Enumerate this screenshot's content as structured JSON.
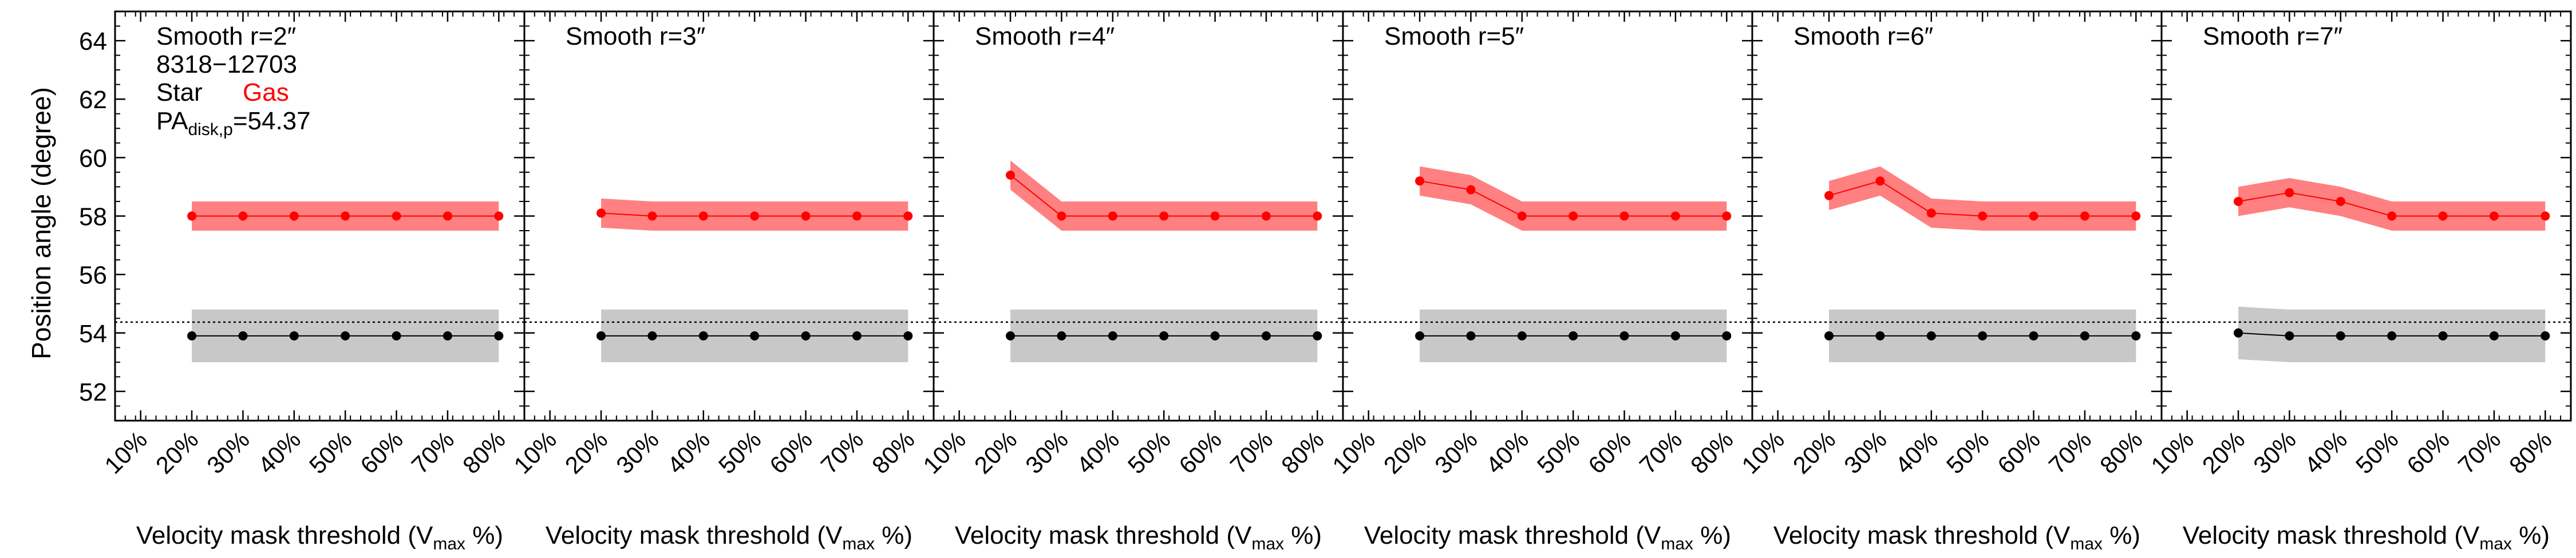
{
  "figure": {
    "ylabel": "Position angle (degree)",
    "xlabel_main": "Velocity mask threshold (V",
    "xlabel_sub": "max",
    "xlabel_tail": " %)",
    "info": {
      "galaxy_id": "8318−12703",
      "legend_star": "Star",
      "legend_gas": "Gas",
      "pa_main": "PA",
      "pa_sub": "disk,p",
      "pa_value": "=54.37"
    },
    "colors": {
      "star": "#000000",
      "gas": "#ff0000",
      "gas_band": "#ff8080",
      "star_band": "#c8c8c8",
      "reference_line": "#000000"
    }
  },
  "chart_data": [
    {
      "type": "line",
      "title": "Smooth r=2″",
      "x": [
        20,
        30,
        40,
        50,
        60,
        70,
        80
      ],
      "xticks": [
        "10%",
        "20%",
        "30%",
        "40%",
        "50%",
        "60%",
        "70%",
        "80%"
      ],
      "xlim": [
        5,
        85
      ],
      "ylim": [
        51,
        65
      ],
      "yticks": [
        52,
        54,
        56,
        58,
        60,
        62,
        64
      ],
      "reference_line": 54.37,
      "series": [
        {
          "name": "Gas",
          "values": [
            58.0,
            58.0,
            58.0,
            58.0,
            58.0,
            58.0,
            58.0
          ],
          "lower": [
            57.5,
            57.5,
            57.5,
            57.5,
            57.5,
            57.5,
            57.5
          ],
          "upper": [
            58.5,
            58.5,
            58.5,
            58.5,
            58.5,
            58.5,
            58.5
          ]
        },
        {
          "name": "Star",
          "values": [
            53.9,
            53.9,
            53.9,
            53.9,
            53.9,
            53.9,
            53.9
          ],
          "lower": [
            53.0,
            53.0,
            53.0,
            53.0,
            53.0,
            53.0,
            53.0
          ],
          "upper": [
            54.8,
            54.8,
            54.8,
            54.8,
            54.8,
            54.8,
            54.8
          ]
        }
      ]
    },
    {
      "type": "line",
      "title": "Smooth r=3″",
      "x": [
        20,
        30,
        40,
        50,
        60,
        70,
        80
      ],
      "xticks": [
        "10%",
        "20%",
        "30%",
        "40%",
        "50%",
        "60%",
        "70%",
        "80%"
      ],
      "xlim": [
        5,
        85
      ],
      "ylim": [
        51,
        65
      ],
      "yticks": [
        52,
        54,
        56,
        58,
        60,
        62,
        64
      ],
      "reference_line": 54.37,
      "series": [
        {
          "name": "Gas",
          "values": [
            58.1,
            58.0,
            58.0,
            58.0,
            58.0,
            58.0,
            58.0
          ],
          "lower": [
            57.6,
            57.5,
            57.5,
            57.5,
            57.5,
            57.5,
            57.5
          ],
          "upper": [
            58.6,
            58.5,
            58.5,
            58.5,
            58.5,
            58.5,
            58.5
          ]
        },
        {
          "name": "Star",
          "values": [
            53.9,
            53.9,
            53.9,
            53.9,
            53.9,
            53.9,
            53.9
          ],
          "lower": [
            53.0,
            53.0,
            53.0,
            53.0,
            53.0,
            53.0,
            53.0
          ],
          "upper": [
            54.8,
            54.8,
            54.8,
            54.8,
            54.8,
            54.8,
            54.8
          ]
        }
      ]
    },
    {
      "type": "line",
      "title": "Smooth r=4″",
      "x": [
        20,
        30,
        40,
        50,
        60,
        70,
        80
      ],
      "xticks": [
        "10%",
        "20%",
        "30%",
        "40%",
        "50%",
        "60%",
        "70%",
        "80%"
      ],
      "xlim": [
        5,
        85
      ],
      "ylim": [
        51,
        65
      ],
      "yticks": [
        52,
        54,
        56,
        58,
        60,
        62,
        64
      ],
      "reference_line": 54.37,
      "series": [
        {
          "name": "Gas",
          "values": [
            59.4,
            58.0,
            58.0,
            58.0,
            58.0,
            58.0,
            58.0
          ],
          "lower": [
            58.9,
            57.5,
            57.5,
            57.5,
            57.5,
            57.5,
            57.5
          ],
          "upper": [
            59.9,
            58.5,
            58.5,
            58.5,
            58.5,
            58.5,
            58.5
          ]
        },
        {
          "name": "Star",
          "values": [
            53.9,
            53.9,
            53.9,
            53.9,
            53.9,
            53.9,
            53.9
          ],
          "lower": [
            53.0,
            53.0,
            53.0,
            53.0,
            53.0,
            53.0,
            53.0
          ],
          "upper": [
            54.8,
            54.8,
            54.8,
            54.8,
            54.8,
            54.8,
            54.8
          ]
        }
      ]
    },
    {
      "type": "line",
      "title": "Smooth r=5″",
      "x": [
        20,
        30,
        40,
        50,
        60,
        70,
        80
      ],
      "xticks": [
        "10%",
        "20%",
        "30%",
        "40%",
        "50%",
        "60%",
        "70%",
        "80%"
      ],
      "xlim": [
        5,
        85
      ],
      "ylim": [
        51,
        65
      ],
      "yticks": [
        52,
        54,
        56,
        58,
        60,
        62,
        64
      ],
      "reference_line": 54.37,
      "series": [
        {
          "name": "Gas",
          "values": [
            59.2,
            58.9,
            58.0,
            58.0,
            58.0,
            58.0,
            58.0
          ],
          "lower": [
            58.7,
            58.4,
            57.5,
            57.5,
            57.5,
            57.5,
            57.5
          ],
          "upper": [
            59.7,
            59.4,
            58.5,
            58.5,
            58.5,
            58.5,
            58.5
          ]
        },
        {
          "name": "Star",
          "values": [
            53.9,
            53.9,
            53.9,
            53.9,
            53.9,
            53.9,
            53.9
          ],
          "lower": [
            53.0,
            53.0,
            53.0,
            53.0,
            53.0,
            53.0,
            53.0
          ],
          "upper": [
            54.8,
            54.8,
            54.8,
            54.8,
            54.8,
            54.8,
            54.8
          ]
        }
      ]
    },
    {
      "type": "line",
      "title": "Smooth r=6″",
      "x": [
        20,
        30,
        40,
        50,
        60,
        70,
        80
      ],
      "xticks": [
        "10%",
        "20%",
        "30%",
        "40%",
        "50%",
        "60%",
        "70%",
        "80%"
      ],
      "xlim": [
        5,
        85
      ],
      "ylim": [
        51,
        65
      ],
      "yticks": [
        52,
        54,
        56,
        58,
        60,
        62,
        64
      ],
      "reference_line": 54.37,
      "series": [
        {
          "name": "Gas",
          "values": [
            58.7,
            59.2,
            58.1,
            58.0,
            58.0,
            58.0,
            58.0
          ],
          "lower": [
            58.2,
            58.7,
            57.6,
            57.5,
            57.5,
            57.5,
            57.5
          ],
          "upper": [
            59.2,
            59.7,
            58.6,
            58.5,
            58.5,
            58.5,
            58.5
          ]
        },
        {
          "name": "Star",
          "values": [
            53.9,
            53.9,
            53.9,
            53.9,
            53.9,
            53.9,
            53.9
          ],
          "lower": [
            53.0,
            53.0,
            53.0,
            53.0,
            53.0,
            53.0,
            53.0
          ],
          "upper": [
            54.8,
            54.8,
            54.8,
            54.8,
            54.8,
            54.8,
            54.8
          ]
        }
      ]
    },
    {
      "type": "line",
      "title": "Smooth r=7″",
      "x": [
        20,
        30,
        40,
        50,
        60,
        70,
        80
      ],
      "xticks": [
        "10%",
        "20%",
        "30%",
        "40%",
        "50%",
        "60%",
        "70%",
        "80%"
      ],
      "xlim": [
        5,
        85
      ],
      "ylim": [
        51,
        65
      ],
      "yticks": [
        52,
        54,
        56,
        58,
        60,
        62,
        64
      ],
      "reference_line": 54.37,
      "series": [
        {
          "name": "Gas",
          "values": [
            58.5,
            58.8,
            58.5,
            58.0,
            58.0,
            58.0,
            58.0
          ],
          "lower": [
            58.0,
            58.3,
            58.0,
            57.5,
            57.5,
            57.5,
            57.5
          ],
          "upper": [
            59.0,
            59.3,
            59.0,
            58.5,
            58.5,
            58.5,
            58.5
          ]
        },
        {
          "name": "Star",
          "values": [
            54.0,
            53.9,
            53.9,
            53.9,
            53.9,
            53.9,
            53.9
          ],
          "lower": [
            53.1,
            53.0,
            53.0,
            53.0,
            53.0,
            53.0,
            53.0
          ],
          "upper": [
            54.9,
            54.8,
            54.8,
            54.8,
            54.8,
            54.8,
            54.8
          ]
        }
      ]
    }
  ]
}
